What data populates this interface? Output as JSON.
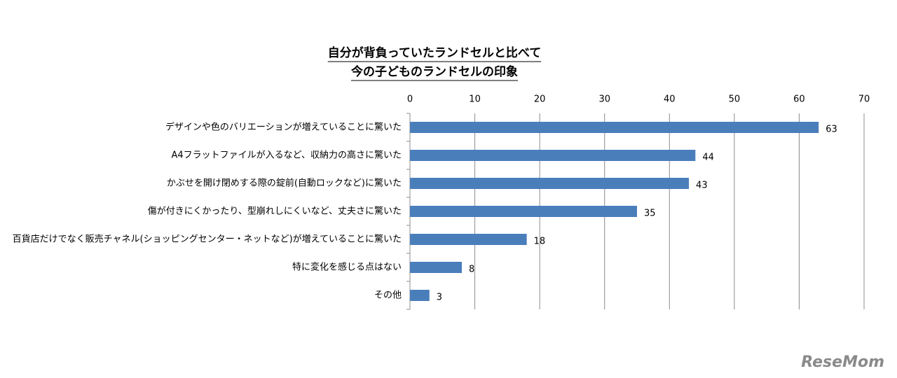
{
  "chart_data": {
    "type": "bar",
    "orientation": "horizontal",
    "title": [
      "自分が背負っていたランドセルと比べて",
      "今の子どものランドセルの印象"
    ],
    "categories": [
      "デザインや色のバリエーションが増えていることに驚いた",
      "A4フラットファイルが入るなど、収納力の高さに驚いた",
      "かぶせを開け閉めする際の錠前(自動ロックなど)に驚いた",
      "傷が付きにくかったり、型崩れしにくいなど、丈夫さに驚いた",
      "百貨店だけでなく販売チャネル(ショッピングセンター・ネットなど)が増えていることに驚いた",
      "特に変化を感じる点はない",
      "その他"
    ],
    "values": [
      63,
      44,
      43,
      35,
      18,
      8,
      3
    ],
    "color": "#4a7ebb",
    "xlim": [
      0,
      70
    ],
    "xticks": [
      0,
      10,
      20,
      30,
      40,
      50,
      60,
      70
    ],
    "grid": true,
    "watermark": "ReseMom"
  }
}
